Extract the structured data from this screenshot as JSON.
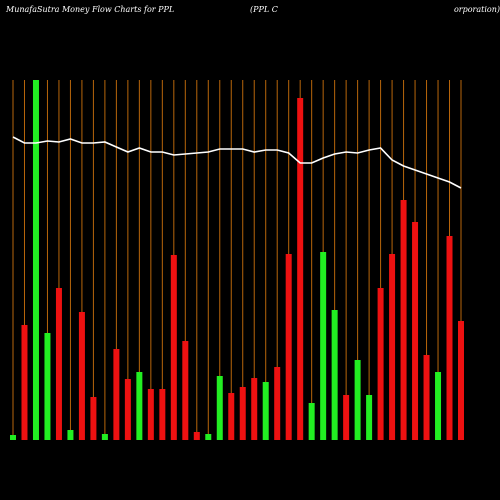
{
  "chart_data": {
    "type": "bar",
    "title": "MunafaSutra  Money Flow  Charts for PPL",
    "subtitle": "(PPL  C",
    "subtitle2": "orporation)",
    "ylim": [
      0,
      360
    ],
    "values": [
      5,
      115,
      360,
      107,
      152,
      10,
      128,
      43,
      6,
      91,
      61,
      68,
      51,
      51,
      185,
      99,
      8,
      6,
      64,
      47,
      53,
      62,
      58,
      73,
      186,
      342,
      37,
      188,
      130,
      45,
      80,
      45,
      152,
      186,
      240,
      218,
      85,
      68,
      204,
      119
    ],
    "bar_colors": [
      "#22ee22",
      "#ee1111",
      "#22ee22",
      "#22ee22",
      "#ee1111",
      "#22ee22",
      "#ee1111",
      "#ee1111",
      "#22ee22",
      "#ee1111",
      "#ee1111",
      "#22ee22",
      "#ee1111",
      "#ee1111",
      "#ee1111",
      "#ee1111",
      "#ee1111",
      "#22ee22",
      "#22ee22",
      "#ee1111",
      "#ee1111",
      "#ee1111",
      "#22ee22",
      "#ee1111",
      "#ee1111",
      "#ee1111",
      "#22ee22",
      "#22ee22",
      "#22ee22",
      "#ee1111",
      "#22ee22",
      "#22ee22",
      "#ee1111",
      "#ee1111",
      "#ee1111",
      "#ee1111",
      "#ee1111",
      "#22ee22",
      "#ee1111",
      "#ee1111"
    ],
    "line_values": [
      303,
      297,
      297,
      299,
      298,
      301,
      297,
      297,
      298,
      293,
      288,
      292,
      288,
      288,
      285,
      286,
      287,
      288,
      291,
      291,
      291,
      288,
      290,
      290,
      287,
      277,
      277,
      282,
      286,
      288,
      287,
      290,
      292,
      280,
      274,
      270,
      266,
      262,
      258,
      252
    ],
    "line_color": "#ffffff",
    "grid_color": "#b8660b"
  }
}
